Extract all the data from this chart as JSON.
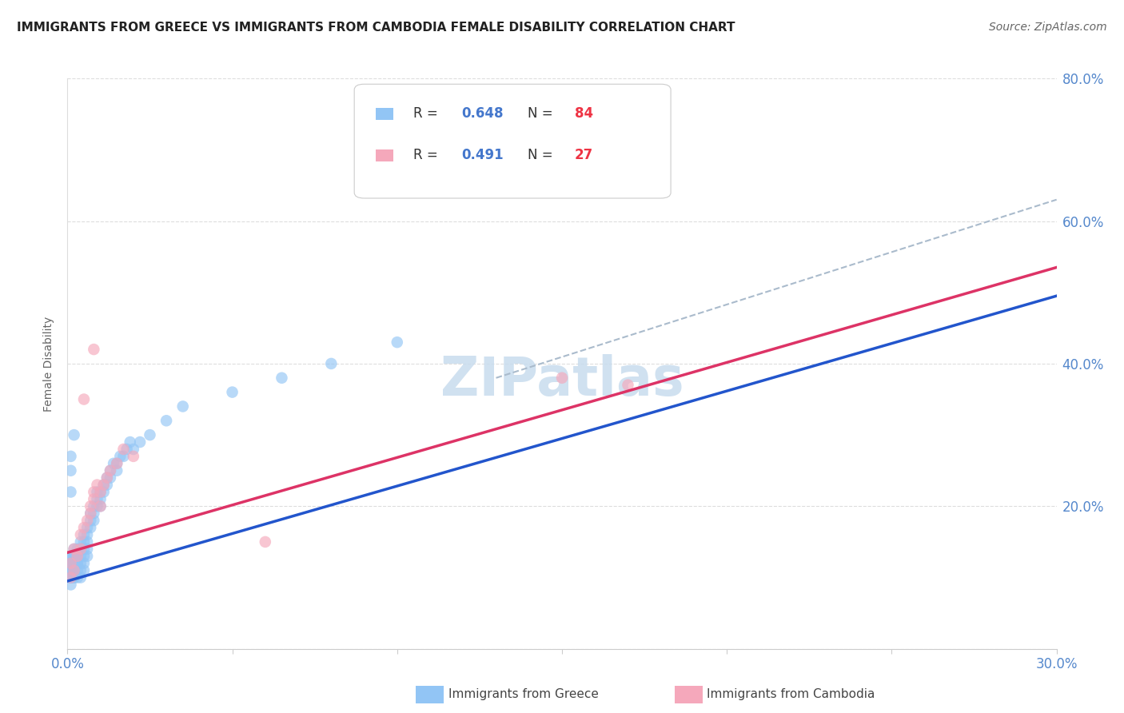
{
  "title": "IMMIGRANTS FROM GREECE VS IMMIGRANTS FROM CAMBODIA FEMALE DISABILITY CORRELATION CHART",
  "source": "Source: ZipAtlas.com",
  "ylabel": "Female Disability",
  "xlim": [
    0.0,
    0.3
  ],
  "ylim": [
    0.0,
    0.8
  ],
  "xticks": [
    0.0,
    0.05,
    0.1,
    0.15,
    0.2,
    0.25,
    0.3
  ],
  "yticks": [
    0.0,
    0.2,
    0.4,
    0.6,
    0.8
  ],
  "yticklabels_right": [
    "",
    "20.0%",
    "40.0%",
    "60.0%",
    "80.0%"
  ],
  "legend_label1": "Immigrants from Greece",
  "legend_label2": "Immigrants from Cambodia",
  "color_greece": "#92C5F5",
  "color_cambodia": "#F5A8BB",
  "color_greece_line": "#2255CC",
  "color_cambodia_line": "#DD3366",
  "color_dashed": "#AABBCC",
  "watermark": "ZIPatlas",
  "greece_trend_x": [
    0.0,
    0.3
  ],
  "greece_trend_y": [
    0.095,
    0.495
  ],
  "cambodia_trend_x": [
    0.0,
    0.3
  ],
  "cambodia_trend_y": [
    0.135,
    0.535
  ],
  "dashed_trend_x": [
    0.13,
    0.3
  ],
  "dashed_trend_y": [
    0.38,
    0.63
  ],
  "greece_x": [
    0.001,
    0.001,
    0.001,
    0.001,
    0.001,
    0.001,
    0.001,
    0.001,
    0.001,
    0.001,
    0.002,
    0.002,
    0.002,
    0.002,
    0.002,
    0.002,
    0.002,
    0.002,
    0.002,
    0.002,
    0.002,
    0.003,
    0.003,
    0.003,
    0.003,
    0.003,
    0.003,
    0.003,
    0.004,
    0.004,
    0.004,
    0.004,
    0.004,
    0.004,
    0.004,
    0.005,
    0.005,
    0.005,
    0.005,
    0.005,
    0.005,
    0.006,
    0.006,
    0.006,
    0.006,
    0.006,
    0.007,
    0.007,
    0.007,
    0.008,
    0.008,
    0.008,
    0.009,
    0.009,
    0.009,
    0.01,
    0.01,
    0.01,
    0.011,
    0.011,
    0.012,
    0.012,
    0.013,
    0.013,
    0.014,
    0.015,
    0.015,
    0.016,
    0.017,
    0.018,
    0.019,
    0.02,
    0.022,
    0.025,
    0.03,
    0.035,
    0.05,
    0.065,
    0.08,
    0.1,
    0.001,
    0.001,
    0.001,
    0.002
  ],
  "greece_y": [
    0.1,
    0.1,
    0.11,
    0.12,
    0.12,
    0.13,
    0.13,
    0.1,
    0.11,
    0.09,
    0.1,
    0.11,
    0.12,
    0.13,
    0.12,
    0.11,
    0.14,
    0.1,
    0.12,
    0.13,
    0.11,
    0.12,
    0.13,
    0.14,
    0.11,
    0.12,
    0.1,
    0.13,
    0.14,
    0.15,
    0.13,
    0.12,
    0.11,
    0.14,
    0.1,
    0.15,
    0.14,
    0.13,
    0.16,
    0.12,
    0.11,
    0.17,
    0.16,
    0.15,
    0.13,
    0.14,
    0.18,
    0.19,
    0.17,
    0.2,
    0.19,
    0.18,
    0.21,
    0.2,
    0.22,
    0.21,
    0.22,
    0.2,
    0.23,
    0.22,
    0.24,
    0.23,
    0.24,
    0.25,
    0.26,
    0.25,
    0.26,
    0.27,
    0.27,
    0.28,
    0.29,
    0.28,
    0.29,
    0.3,
    0.32,
    0.34,
    0.36,
    0.38,
    0.4,
    0.43,
    0.22,
    0.25,
    0.27,
    0.3
  ],
  "cambodia_x": [
    0.001,
    0.001,
    0.002,
    0.002,
    0.003,
    0.004,
    0.004,
    0.005,
    0.006,
    0.007,
    0.007,
    0.008,
    0.008,
    0.009,
    0.01,
    0.01,
    0.011,
    0.012,
    0.013,
    0.015,
    0.017,
    0.02,
    0.15,
    0.17,
    0.06,
    0.005,
    0.008
  ],
  "cambodia_y": [
    0.1,
    0.12,
    0.11,
    0.14,
    0.13,
    0.16,
    0.14,
    0.17,
    0.18,
    0.2,
    0.19,
    0.21,
    0.22,
    0.23,
    0.22,
    0.2,
    0.23,
    0.24,
    0.25,
    0.26,
    0.28,
    0.27,
    0.38,
    0.37,
    0.15,
    0.35,
    0.42
  ]
}
